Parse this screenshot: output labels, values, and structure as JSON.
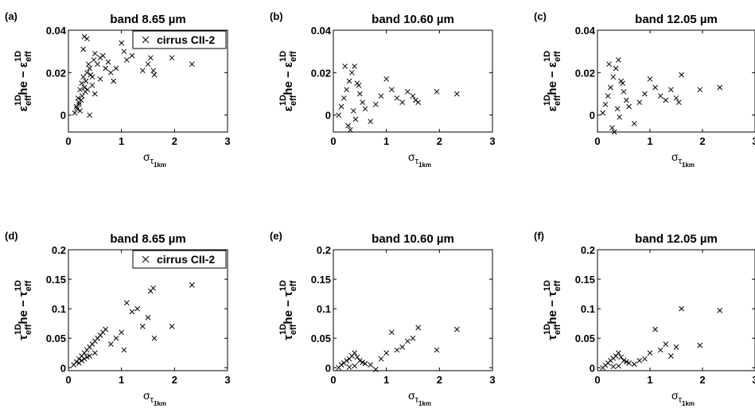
{
  "chart_data": [
    {
      "panel": "(a)",
      "type": "scatter",
      "title": "band 8.65 µm",
      "xlabel": {
        "base": "σ",
        "sub": "τ",
        "subsub": "1km"
      },
      "ylabel": {
        "a": "ε",
        "a_sup": "1D",
        "a_sub": "eff",
        "mid": "he − ",
        "b": "ε",
        "b_sup": "1D",
        "b_sub": "eff"
      },
      "xlim": [
        0,
        3
      ],
      "ylim": [
        -0.008,
        0.04
      ],
      "xticks": [
        "0",
        "1",
        "2",
        "3"
      ],
      "yticks": [
        "0",
        "0.02",
        "0.04"
      ],
      "legend": "cirrus CII-2",
      "legend_position": "top-right",
      "points": {
        "x": [
          0.15,
          0.18,
          0.2,
          0.22,
          0.25,
          0.28,
          0.3,
          0.33,
          0.35,
          0.38,
          0.4,
          0.42,
          0.45,
          0.48,
          0.5,
          0.55,
          0.6,
          0.65,
          0.7,
          0.75,
          0.8,
          0.85,
          0.9,
          1.0,
          1.05,
          1.1,
          1.2,
          1.3,
          1.4,
          1.5,
          1.55,
          1.6,
          1.62,
          1.95,
          2.33,
          0.3,
          0.35,
          0.28,
          0.4,
          0.5,
          0.22,
          0.26,
          0.32,
          0.45,
          0.6,
          0.12,
          0.16,
          0.2,
          0.24,
          0.36
        ],
        "y": [
          0.004,
          0.008,
          0.006,
          0.012,
          0.015,
          0.018,
          0.013,
          0.016,
          0.02,
          0.024,
          0.022,
          0.019,
          0.018,
          0.026,
          0.029,
          0.024,
          0.027,
          0.028,
          0.022,
          0.025,
          0.02,
          0.016,
          0.022,
          0.034,
          0.03,
          0.026,
          0.028,
          0.033,
          0.021,
          0.024,
          0.027,
          0.021,
          0.019,
          0.027,
          0.024,
          0.037,
          0.036,
          0.031,
          0.0,
          0.01,
          0.002,
          0.009,
          0.011,
          0.014,
          0.017,
          0.001,
          0.003,
          0.005,
          0.007,
          0.012
        ]
      }
    },
    {
      "panel": "(b)",
      "type": "scatter",
      "title": "band 10.60 µm",
      "xlabel": {
        "base": "σ",
        "sub": "τ",
        "subsub": "1km"
      },
      "ylabel": {
        "a": "ε",
        "a_sup": "1D",
        "a_sub": "eff",
        "mid": "he − ",
        "b": "ε",
        "b_sup": "1D",
        "b_sub": "eff"
      },
      "xlim": [
        0,
        3
      ],
      "ylim": [
        -0.008,
        0.04
      ],
      "xticks": [
        "0",
        "1",
        "2",
        "3"
      ],
      "yticks": [
        "0",
        "0.02",
        "0.04"
      ],
      "points": {
        "x": [
          0.1,
          0.15,
          0.2,
          0.25,
          0.3,
          0.35,
          0.4,
          0.45,
          0.5,
          0.55,
          0.6,
          0.7,
          0.8,
          0.9,
          1.0,
          1.1,
          1.2,
          1.3,
          1.4,
          1.5,
          1.55,
          1.6,
          1.95,
          2.33,
          0.28,
          0.32,
          0.38,
          0.42,
          0.48,
          0.22
        ],
        "y": [
          0.0,
          0.004,
          0.008,
          0.012,
          0.016,
          0.02,
          0.023,
          0.015,
          0.01,
          0.006,
          0.003,
          -0.003,
          0.005,
          0.009,
          0.017,
          0.012,
          0.008,
          0.006,
          0.011,
          0.009,
          0.007,
          0.006,
          0.011,
          0.01,
          -0.005,
          -0.007,
          0.002,
          -0.002,
          0.014,
          0.023
        ]
      }
    },
    {
      "panel": "(c)",
      "type": "scatter",
      "title": "band 12.05 µm",
      "xlabel": {
        "base": "σ",
        "sub": "τ",
        "subsub": "1km"
      },
      "ylabel": {
        "a": "ε",
        "a_sup": "1D",
        "a_sub": "eff",
        "mid": "he − ",
        "b": "ε",
        "b_sup": "1D",
        "b_sub": "eff"
      },
      "xlim": [
        0,
        3
      ],
      "ylim": [
        -0.008,
        0.04
      ],
      "xticks": [
        "0",
        "1",
        "2",
        "3"
      ],
      "yticks": [
        "0",
        "0.02",
        "0.04"
      ],
      "points": {
        "x": [
          0.1,
          0.15,
          0.2,
          0.25,
          0.3,
          0.35,
          0.4,
          0.45,
          0.5,
          0.55,
          0.6,
          0.7,
          0.8,
          0.9,
          1.0,
          1.1,
          1.2,
          1.3,
          1.4,
          1.5,
          1.55,
          1.6,
          1.95,
          2.33,
          0.28,
          0.32,
          0.38,
          0.42,
          0.48,
          0.22
        ],
        "y": [
          0.001,
          0.005,
          0.009,
          0.013,
          0.018,
          0.022,
          0.026,
          0.016,
          0.011,
          0.007,
          0.004,
          -0.004,
          0.006,
          0.01,
          0.017,
          0.013,
          0.009,
          0.007,
          0.012,
          0.008,
          0.006,
          0.019,
          0.012,
          0.013,
          -0.006,
          -0.008,
          0.003,
          -0.001,
          0.015,
          0.024
        ]
      }
    },
    {
      "panel": "(d)",
      "type": "scatter",
      "title": "band 8.65 µm",
      "xlabel": {
        "base": "σ",
        "sub": "τ",
        "subsub": "1km"
      },
      "ylabel": {
        "a": "τ",
        "a_sup": "1D",
        "a_sub": "eff",
        "mid": "he − ",
        "b": "τ",
        "b_sup": "1D",
        "b_sub": "eff"
      },
      "xlim": [
        0,
        3
      ],
      "ylim": [
        -0.005,
        0.2
      ],
      "xticks": [
        "0",
        "1",
        "2",
        "3"
      ],
      "yticks": [
        "0",
        "0.05",
        "0.1",
        "0.15",
        "0.2"
      ],
      "legend": "cirrus CII-2",
      "legend_position": "top-right",
      "points": {
        "x": [
          0.1,
          0.15,
          0.2,
          0.25,
          0.3,
          0.35,
          0.4,
          0.45,
          0.5,
          0.55,
          0.6,
          0.65,
          0.7,
          0.8,
          0.9,
          1.0,
          1.05,
          1.1,
          1.2,
          1.3,
          1.4,
          1.5,
          1.55,
          1.6,
          1.62,
          1.95,
          2.33,
          0.3,
          0.4,
          0.5,
          0.2,
          0.25,
          0.35
        ],
        "y": [
          0.005,
          0.01,
          0.015,
          0.02,
          0.025,
          0.03,
          0.035,
          0.04,
          0.045,
          0.05,
          0.055,
          0.06,
          0.065,
          0.04,
          0.05,
          0.06,
          0.03,
          0.11,
          0.095,
          0.1,
          0.07,
          0.085,
          0.13,
          0.135,
          0.05,
          0.07,
          0.14,
          0.015,
          0.02,
          0.025,
          0.008,
          0.012,
          0.018
        ]
      }
    },
    {
      "panel": "(e)",
      "type": "scatter",
      "title": "band 10.60 µm",
      "xlabel": {
        "base": "σ",
        "sub": "τ",
        "subsub": "1km"
      },
      "ylabel": {
        "a": "τ",
        "a_sup": "1D",
        "a_sub": "eff",
        "mid": "he − ",
        "b": "τ",
        "b_sup": "1D",
        "b_sub": "eff"
      },
      "xlim": [
        0,
        3
      ],
      "ylim": [
        -0.005,
        0.2
      ],
      "xticks": [
        "0",
        "1",
        "2",
        "3"
      ],
      "yticks": [
        "0",
        "0.05",
        "0.1",
        "0.15",
        "0.2"
      ],
      "points": {
        "x": [
          0.1,
          0.15,
          0.2,
          0.25,
          0.3,
          0.35,
          0.4,
          0.45,
          0.5,
          0.55,
          0.6,
          0.7,
          0.8,
          0.9,
          1.0,
          1.1,
          1.2,
          1.3,
          1.4,
          1.5,
          1.6,
          1.95,
          2.33,
          0.3,
          0.4
        ],
        "y": [
          0.0,
          0.005,
          0.008,
          0.012,
          0.015,
          0.02,
          0.025,
          0.018,
          0.012,
          0.009,
          0.007,
          0.005,
          -0.003,
          0.015,
          0.025,
          0.06,
          0.03,
          0.035,
          0.045,
          0.05,
          0.068,
          0.03,
          0.065,
          0.001,
          0.003
        ]
      }
    },
    {
      "panel": "(f)",
      "type": "scatter",
      "title": "band 12.05 µm",
      "xlabel": {
        "base": "σ",
        "sub": "τ",
        "subsub": "1km"
      },
      "ylabel": {
        "a": "τ",
        "a_sup": "1D",
        "a_sub": "eff",
        "mid": "he − ",
        "b": "τ",
        "b_sup": "1D",
        "b_sub": "eff"
      },
      "xlim": [
        0,
        3
      ],
      "ylim": [
        -0.005,
        0.2
      ],
      "xticks": [
        "0",
        "1",
        "2",
        "3"
      ],
      "yticks": [
        "0",
        "0.05",
        "0.1",
        "0.15",
        "0.2"
      ],
      "points": {
        "x": [
          0.1,
          0.15,
          0.2,
          0.25,
          0.3,
          0.35,
          0.4,
          0.45,
          0.5,
          0.55,
          0.6,
          0.7,
          0.8,
          0.9,
          1.0,
          1.1,
          1.2,
          1.3,
          1.4,
          1.5,
          1.6,
          1.95,
          2.33,
          0.3,
          0.4
        ],
        "y": [
          0.0,
          0.004,
          0.008,
          0.012,
          0.016,
          0.02,
          0.025,
          0.018,
          0.012,
          0.01,
          0.008,
          0.006,
          0.012,
          0.015,
          0.025,
          0.065,
          0.03,
          0.04,
          0.02,
          0.035,
          0.1,
          0.038,
          0.097,
          0.002,
          0.003
        ]
      }
    }
  ]
}
